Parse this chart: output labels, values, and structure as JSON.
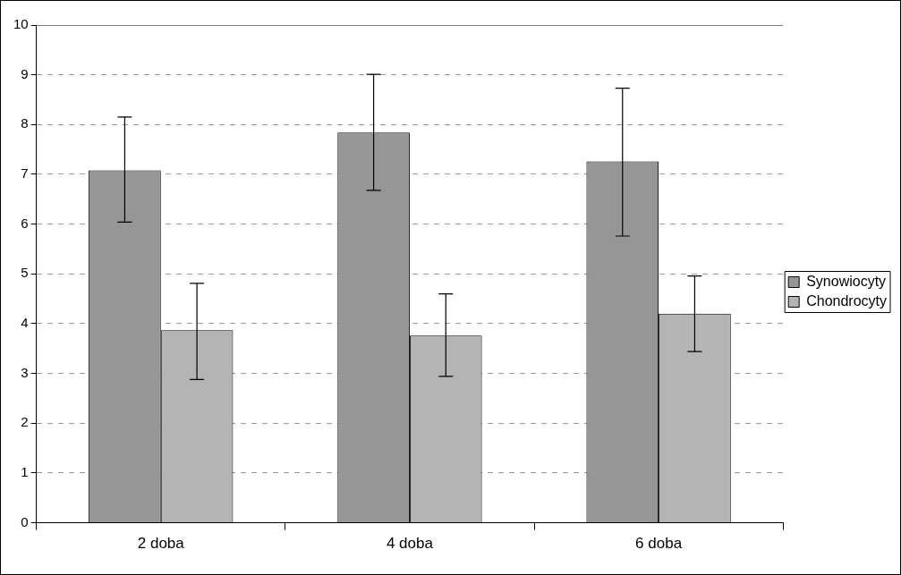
{
  "chart_data": {
    "type": "bar",
    "categories": [
      "2 doba",
      "4 doba",
      "6 doba"
    ],
    "series": [
      {
        "name": "Synowiocyty",
        "color": "#969696",
        "values": [
          7.08,
          7.84,
          7.26
        ],
        "errors": [
          [
            6.04,
            8.15
          ],
          [
            6.68,
            9.01
          ],
          [
            5.76,
            8.73
          ]
        ]
      },
      {
        "name": "Chondrocyty",
        "color": "#b4b4b4",
        "values": [
          3.87,
          3.76,
          4.2
        ],
        "errors": [
          [
            2.88,
            4.81
          ],
          [
            2.94,
            4.6
          ],
          [
            3.44,
            4.96
          ]
        ]
      }
    ],
    "ylim": [
      0,
      10
    ],
    "yticks": [
      0,
      1,
      2,
      3,
      4,
      5,
      6,
      7,
      8,
      9,
      10
    ],
    "grid": "y",
    "legend": "right"
  }
}
